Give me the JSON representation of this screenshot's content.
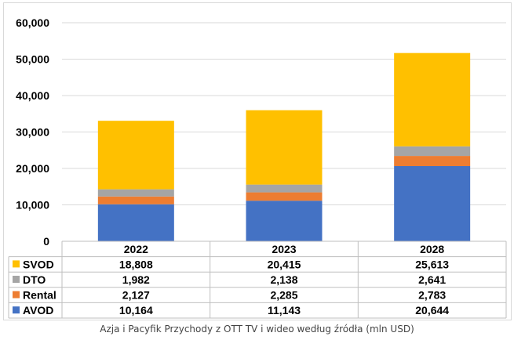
{
  "caption": "Azja i Pacyfik Przychody z OTT TV i wideo według źródła (mln USD)",
  "chart_data": {
    "type": "bar",
    "stacked": true,
    "categories": [
      "2022",
      "2023",
      "2028"
    ],
    "ylim": [
      0,
      60000
    ],
    "y_ticks": [
      {
        "value": 0,
        "label": "0"
      },
      {
        "value": 10000,
        "label": "10,000"
      },
      {
        "value": 20000,
        "label": "20,000"
      },
      {
        "value": 30000,
        "label": "30,000"
      },
      {
        "value": 40000,
        "label": "40,000"
      },
      {
        "value": 50000,
        "label": "50,000"
      },
      {
        "value": 60000,
        "label": "60,000"
      }
    ],
    "gridlines": true,
    "series": [
      {
        "name": "AVOD",
        "color": "#4472C4",
        "values": [
          10164,
          11143,
          20644
        ],
        "labels": [
          "10,164",
          "11,143",
          "20,644"
        ]
      },
      {
        "name": "Rental",
        "color": "#ED7D31",
        "values": [
          2127,
          2285,
          2783
        ],
        "labels": [
          "2,127",
          "2,285",
          "2,783"
        ]
      },
      {
        "name": "DTO",
        "color": "#A5A5A5",
        "values": [
          1982,
          2138,
          2641
        ],
        "labels": [
          "1,982",
          "2,138",
          "2,641"
        ]
      },
      {
        "name": "SVOD",
        "color": "#FFC000",
        "values": [
          18808,
          20415,
          25613
        ],
        "labels": [
          "18,808",
          "20,415",
          "25,613"
        ]
      }
    ],
    "table_row_order": [
      "SVOD",
      "DTO",
      "Rental",
      "AVOD"
    ]
  }
}
